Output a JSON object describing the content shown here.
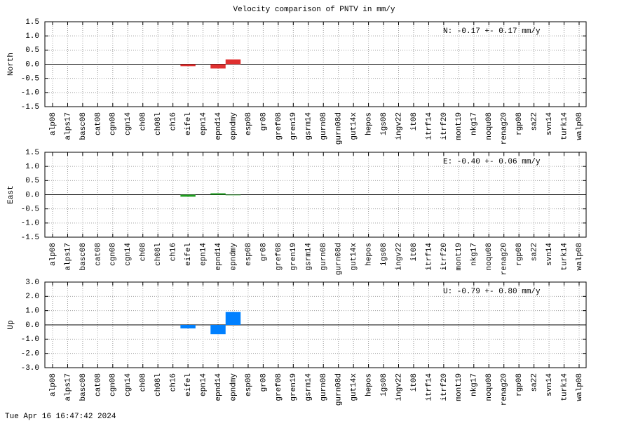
{
  "title": "Velocity comparison of PNTV in mm/y",
  "footer": "Tue Apr 16 16:47:42 2024",
  "chart_data": [
    {
      "type": "bar",
      "ylabel": "North",
      "annotation": "N:  -0.17 +-  0.17 mm/y",
      "color": "#e03030",
      "categories": [
        "alp08",
        "alps17",
        "basc08",
        "cat08",
        "cgn08",
        "cgn14",
        "ch08",
        "ch08l",
        "ch16",
        "eifel",
        "epn14",
        "epnd14",
        "epndmy",
        "esp08",
        "gr08",
        "gref08",
        "gren19",
        "gsrm14",
        "gurn08",
        "gurn08d",
        "gut14x",
        "hepos",
        "igs08",
        "ingv22",
        "it08",
        "itrf14",
        "itrf20",
        "mont19",
        "nkg17",
        "noqu08",
        "renag20",
        "rgp08",
        "sa22",
        "svn14",
        "turk14",
        "walp08"
      ],
      "values": [
        null,
        null,
        null,
        null,
        null,
        null,
        null,
        null,
        null,
        -0.07,
        null,
        -0.15,
        0.17,
        null,
        null,
        null,
        null,
        null,
        null,
        null,
        null,
        null,
        null,
        null,
        null,
        null,
        null,
        null,
        null,
        null,
        null,
        null,
        null,
        null,
        null,
        null
      ],
      "ylim": [
        -1.5,
        1.5
      ],
      "yticks": [
        -1.5,
        {
          "value": -1,
          "label": "-1.0"
        },
        -0.5,
        {
          "value": 0,
          "label": "0.0"
        },
        0.5,
        {
          "value": 1,
          "label": "1.0"
        },
        1.5
      ],
      "grid": true
    },
    {
      "type": "bar",
      "ylabel": "East",
      "annotation": "E:  -0.40 +-  0.06 mm/y",
      "color": "#20a020",
      "categories": [
        "alp08",
        "alps17",
        "basc08",
        "cat08",
        "cgn08",
        "cgn14",
        "ch08",
        "ch08l",
        "ch16",
        "eifel",
        "epn14",
        "epnd14",
        "epndmy",
        "esp08",
        "gr08",
        "gref08",
        "gren19",
        "gsrm14",
        "gurn08",
        "gurn08d",
        "gut14x",
        "hepos",
        "igs08",
        "ingv22",
        "it08",
        "itrf14",
        "itrf20",
        "mont19",
        "nkg17",
        "noqu08",
        "renag20",
        "rgp08",
        "sa22",
        "svn14",
        "turk14",
        "walp08"
      ],
      "values": [
        null,
        null,
        null,
        null,
        null,
        null,
        null,
        null,
        null,
        -0.07,
        null,
        0.05,
        -0.02,
        null,
        null,
        null,
        null,
        null,
        null,
        null,
        null,
        null,
        null,
        null,
        null,
        null,
        null,
        null,
        null,
        null,
        null,
        null,
        null,
        null,
        null,
        null
      ],
      "ylim": [
        -1.5,
        1.5
      ],
      "yticks": [
        -1.5,
        {
          "value": -1,
          "label": "-1.0"
        },
        -0.5,
        {
          "value": 0,
          "label": "0.0"
        },
        0.5,
        {
          "value": 1,
          "label": "1.0"
        },
        1.5
      ],
      "grid": true
    },
    {
      "type": "bar",
      "ylabel": "Up",
      "annotation": "U:  -0.79 +-  0.80 mm/y",
      "color": "#0080ff",
      "categories": [
        "alp08",
        "alps17",
        "basc08",
        "cat08",
        "cgn08",
        "cgn14",
        "ch08",
        "ch08l",
        "ch16",
        "eifel",
        "epn14",
        "epnd14",
        "epndmy",
        "esp08",
        "gr08",
        "gref08",
        "gren19",
        "gsrm14",
        "gurn08",
        "gurn08d",
        "gut14x",
        "hepos",
        "igs08",
        "ingv22",
        "it08",
        "itrf14",
        "itrf20",
        "mont19",
        "nkg17",
        "noqu08",
        "renag20",
        "rgp08",
        "sa22",
        "svn14",
        "turk14",
        "walp08"
      ],
      "values": [
        null,
        null,
        null,
        null,
        null,
        null,
        null,
        null,
        null,
        -0.25,
        null,
        -0.65,
        0.9,
        null,
        null,
        null,
        null,
        null,
        null,
        null,
        null,
        null,
        null,
        null,
        null,
        null,
        null,
        null,
        null,
        null,
        null,
        null,
        null,
        null,
        null,
        null
      ],
      "ylim": [
        -3,
        3
      ],
      "yticks": [
        {
          "value": -3,
          "label": "-3.0"
        },
        {
          "value": -2,
          "label": "-2.0"
        },
        {
          "value": -1,
          "label": "-1.0"
        },
        {
          "value": 0,
          "label": "0.0"
        },
        {
          "value": 1,
          "label": "1.0"
        },
        {
          "value": 2,
          "label": "2.0"
        },
        {
          "value": 3,
          "label": "3.0"
        }
      ],
      "grid": true
    }
  ]
}
